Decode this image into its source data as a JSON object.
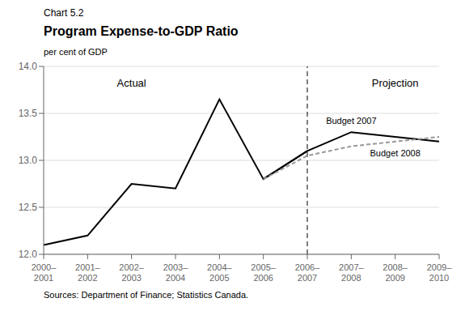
{
  "chart_data": {
    "type": "line",
    "chart_label": "Chart 5.2",
    "title": "Program Expense-to-GDP Ratio",
    "y_label": "per cent of GDP",
    "source": "Sources: Department of Finance; Statistics Canada.",
    "categories": [
      "2000–\n2001",
      "2001–\n2002",
      "2002–\n2003",
      "2003–\n2004",
      "2004–\n2005",
      "2005–\n2006",
      "2006–\n2007",
      "2007–\n2008",
      "2008–\n2009",
      "2009–\n2010"
    ],
    "series": [
      {
        "name": "Actual",
        "color": "#000000",
        "line_style": "solid",
        "values": [
          12.1,
          12.2,
          12.75,
          12.7,
          13.65,
          12.8,
          13.1,
          null,
          null,
          null
        ]
      },
      {
        "name": "Budget 2007",
        "color": "#000000",
        "line_style": "solid",
        "values": [
          null,
          null,
          null,
          null,
          null,
          12.8,
          13.1,
          13.3,
          13.25,
          13.2
        ]
      },
      {
        "name": "Budget 2008",
        "color": "#999999",
        "line_style": "dashed",
        "values": [
          null,
          null,
          null,
          null,
          null,
          12.8,
          13.05,
          13.15,
          13.2,
          13.25
        ]
      }
    ],
    "annotations": [
      "Projection"
    ],
    "divider_x": 6,
    "ylim": [
      12.0,
      14.0
    ],
    "yticks": [
      {
        "value": 12.0,
        "label": "12.0"
      },
      12.5,
      {
        "value": 13.0,
        "label": "13.0"
      },
      13.5,
      {
        "value": 14.0,
        "label": "14.0"
      }
    ],
    "grid": true
  }
}
